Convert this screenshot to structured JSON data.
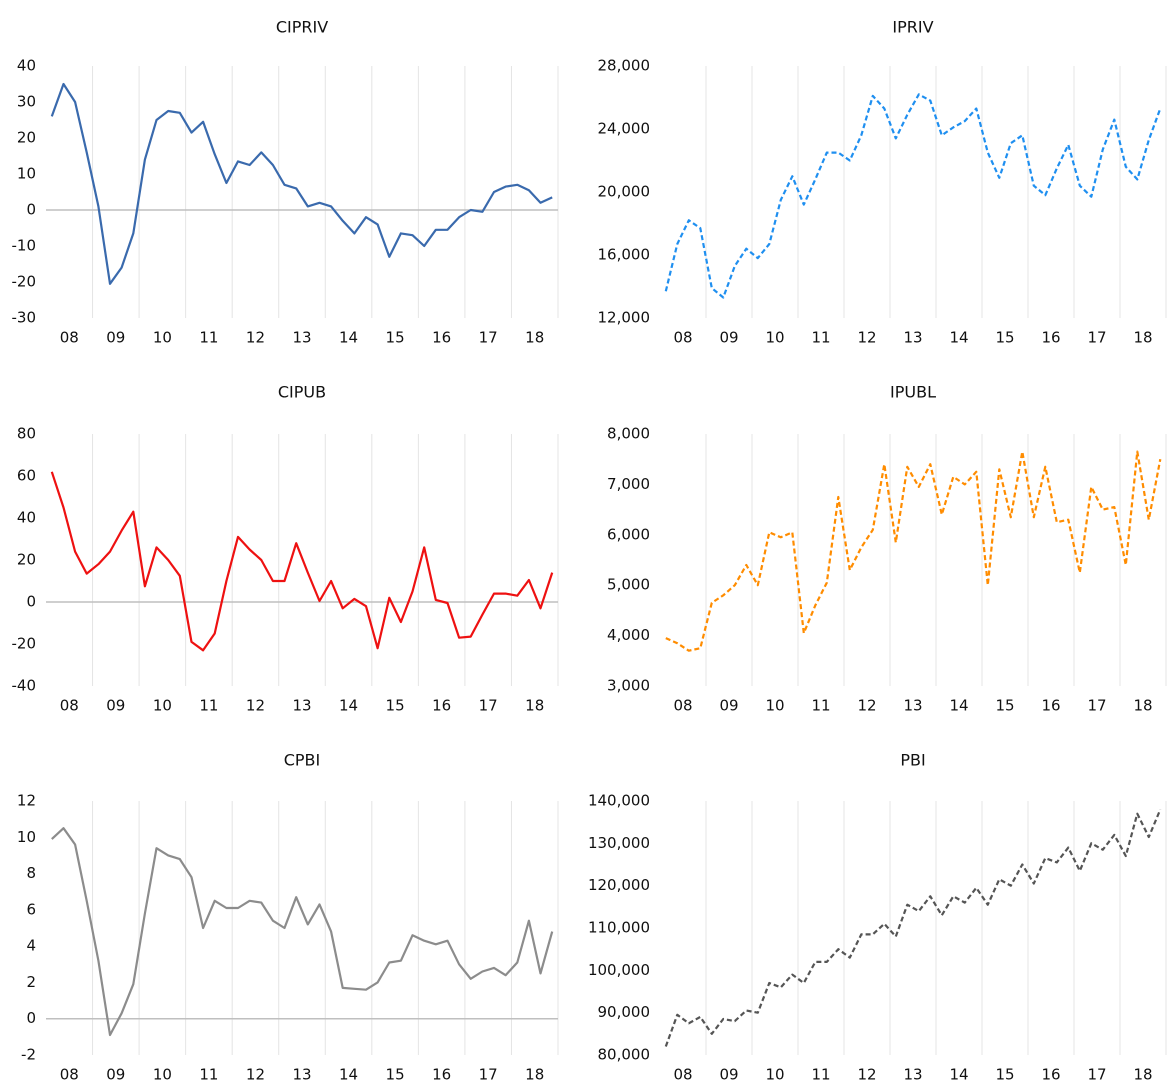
{
  "chart_data": [
    {
      "type": "line",
      "title": "CIPRIV",
      "color": "#3a6aad",
      "line_style": "solid",
      "categories": [
        null,
        "08",
        null,
        null,
        null,
        "09",
        null,
        null,
        null,
        "10",
        null,
        null,
        null,
        "11",
        null,
        null,
        null,
        "12",
        null,
        null,
        null,
        "13",
        null,
        null,
        null,
        "14",
        null,
        null,
        null,
        "15",
        null,
        null,
        null,
        "16",
        null,
        null,
        null,
        "17",
        null,
        null,
        null,
        "18",
        null,
        null
      ],
      "values": [
        26,
        35,
        30,
        16,
        1,
        -20.5,
        -16,
        -6.5,
        14,
        25,
        27.5,
        27,
        21.5,
        24.5,
        15.5,
        7.5,
        13.5,
        12.5,
        16,
        12.5,
        7,
        6,
        1,
        2,
        1,
        -3,
        -6.5,
        -2,
        -4,
        -13,
        -6.5,
        -7,
        -10,
        -5.5,
        -5.5,
        -2,
        0,
        -0.5,
        5,
        6.5,
        7,
        5.5,
        2,
        3.5
      ],
      "ylim": [
        -30,
        40
      ],
      "yticks": [
        -30,
        -20,
        -10,
        0,
        10,
        20,
        30,
        40
      ]
    },
    {
      "type": "line",
      "title": "IPRIV",
      "color": "#1f8ff0",
      "line_style": "dashed",
      "categories": [
        null,
        "08",
        null,
        null,
        null,
        "09",
        null,
        null,
        null,
        "10",
        null,
        null,
        null,
        "11",
        null,
        null,
        null,
        "12",
        null,
        null,
        null,
        "13",
        null,
        null,
        null,
        "14",
        null,
        null,
        null,
        "15",
        null,
        null,
        null,
        "16",
        null,
        null,
        null,
        "17",
        null,
        null,
        null,
        "18",
        null,
        null
      ],
      "values": [
        13700,
        16700,
        18200,
        17700,
        13900,
        13300,
        15300,
        16400,
        15800,
        16700,
        19500,
        21000,
        19200,
        20800,
        22500,
        22500,
        22000,
        23600,
        26100,
        25300,
        23400,
        24900,
        26200,
        25800,
        23600,
        24100,
        24500,
        25300,
        22500,
        20900,
        23100,
        23600,
        20400,
        19800,
        21500,
        23000,
        20400,
        19700,
        22700,
        24600,
        21600,
        20800,
        23300,
        25300
      ],
      "ylim": [
        12000,
        28000
      ],
      "yticks": [
        {
          "value": 12000,
          "label": "12,000"
        },
        {
          "value": 16000,
          "label": "16,000"
        },
        {
          "value": 20000,
          "label": "20,000"
        },
        {
          "value": 24000,
          "label": "24,000"
        },
        {
          "value": 28000,
          "label": "28,000"
        }
      ]
    },
    {
      "type": "line",
      "title": "CIPUB",
      "color": "#ee1111",
      "line_style": "solid",
      "categories": [
        null,
        "08",
        null,
        null,
        null,
        "09",
        null,
        null,
        null,
        "10",
        null,
        null,
        null,
        "11",
        null,
        null,
        null,
        "12",
        null,
        null,
        null,
        "13",
        null,
        null,
        null,
        "14",
        null,
        null,
        null,
        "15",
        null,
        null,
        null,
        "16",
        null,
        null,
        null,
        "17",
        null,
        null,
        null,
        "18",
        null,
        null
      ],
      "values": [
        62,
        45,
        24,
        13.5,
        18,
        24,
        34,
        43,
        7.5,
        26,
        20,
        12.5,
        -19,
        -23,
        -15,
        10,
        31,
        25,
        20,
        10,
        10,
        28,
        14,
        0.5,
        10,
        -3,
        1.5,
        -2,
        -22,
        2,
        -9.5,
        5,
        26,
        1,
        -0.5,
        -17,
        -16.5,
        -6,
        4,
        4,
        3,
        10.5,
        -3,
        14
      ],
      "ylim": [
        -40,
        80
      ],
      "yticks": [
        -40,
        -20,
        0,
        20,
        40,
        60,
        80
      ]
    },
    {
      "type": "line",
      "title": "IPUBL",
      "color": "#ff8c00",
      "line_style": "dashed",
      "categories": [
        null,
        "08",
        null,
        null,
        null,
        "09",
        null,
        null,
        null,
        "10",
        null,
        null,
        null,
        "11",
        null,
        null,
        null,
        "12",
        null,
        null,
        null,
        "13",
        null,
        null,
        null,
        "14",
        null,
        null,
        null,
        "15",
        null,
        null,
        null,
        "16",
        null,
        null,
        null,
        "17",
        null,
        null,
        null,
        "18",
        null,
        null
      ],
      "values": [
        3950,
        3850,
        3700,
        3750,
        4650,
        4800,
        5000,
        5400,
        5000,
        6050,
        5950,
        6050,
        4050,
        4600,
        5050,
        6750,
        5300,
        5750,
        6100,
        7400,
        5850,
        7350,
        6950,
        7400,
        6400,
        7150,
        7000,
        7250,
        5000,
        7300,
        6350,
        7650,
        6350,
        7350,
        6250,
        6300,
        5250,
        6950,
        6500,
        6550,
        5400,
        7650,
        6300,
        7500
      ],
      "ylim": [
        3000,
        8000
      ],
      "yticks": [
        {
          "value": 3000,
          "label": "3,000"
        },
        {
          "value": 4000,
          "label": "4,000"
        },
        {
          "value": 5000,
          "label": "5,000"
        },
        {
          "value": 6000,
          "label": "6,000"
        },
        {
          "value": 7000,
          "label": "7,000"
        },
        {
          "value": 8000,
          "label": "8,000"
        }
      ]
    },
    {
      "type": "line",
      "title": "CPBI",
      "color": "#8c8c8c",
      "line_style": "solid",
      "categories": [
        null,
        "08",
        null,
        null,
        null,
        "09",
        null,
        null,
        null,
        "10",
        null,
        null,
        null,
        "11",
        null,
        null,
        null,
        "12",
        null,
        null,
        null,
        "13",
        null,
        null,
        null,
        "14",
        null,
        null,
        null,
        "15",
        null,
        null,
        null,
        "16",
        null,
        null,
        null,
        "17",
        null,
        null,
        null,
        "18",
        null,
        null
      ],
      "values": [
        9.9,
        10.5,
        9.6,
        6.5,
        3.2,
        -0.9,
        0.3,
        1.9,
        5.8,
        9.4,
        9.0,
        8.8,
        7.8,
        5.0,
        6.5,
        6.1,
        6.1,
        6.5,
        6.4,
        5.4,
        5.0,
        6.7,
        5.2,
        6.3,
        4.8,
        1.7,
        1.65,
        1.6,
        2.0,
        3.1,
        3.2,
        4.6,
        4.3,
        4.1,
        4.3,
        3.0,
        2.2,
        2.6,
        2.8,
        2.4,
        3.1,
        5.4,
        2.5,
        4.8
      ],
      "ylim": [
        -2,
        12
      ],
      "yticks": [
        -2,
        0,
        2,
        4,
        6,
        8,
        10,
        12
      ]
    },
    {
      "type": "line",
      "title": "PBI",
      "color": "#555555",
      "line_style": "dashed",
      "categories": [
        null,
        "08",
        null,
        null,
        null,
        "09",
        null,
        null,
        null,
        "10",
        null,
        null,
        null,
        "11",
        null,
        null,
        null,
        "12",
        null,
        null,
        null,
        "13",
        null,
        null,
        null,
        "14",
        null,
        null,
        null,
        "15",
        null,
        null,
        null,
        "16",
        null,
        null,
        null,
        "17",
        null,
        null,
        null,
        "18",
        null,
        null
      ],
      "values": [
        82000,
        89500,
        87500,
        89000,
        85000,
        88500,
        88000,
        90500,
        90000,
        97000,
        96000,
        99000,
        97000,
        102000,
        102000,
        105000,
        103000,
        108500,
        108500,
        111000,
        108000,
        115500,
        114000,
        117500,
        113000,
        117500,
        116000,
        119500,
        115500,
        121500,
        120000,
        125000,
        120500,
        126500,
        125500,
        129000,
        123500,
        130000,
        128500,
        132000,
        127000,
        137000,
        131500,
        138000
      ],
      "ylim": [
        80000,
        140000
      ],
      "yticks": [
        {
          "value": 80000,
          "label": "80,000"
        },
        {
          "value": 90000,
          "label": "90,000"
        },
        {
          "value": 100000,
          "label": "100,000"
        },
        {
          "value": 110000,
          "label": "110,000"
        },
        {
          "value": 120000,
          "label": "120,000"
        },
        {
          "value": 130000,
          "label": "130,000"
        },
        {
          "value": 140000,
          "label": "140,000"
        }
      ]
    }
  ]
}
